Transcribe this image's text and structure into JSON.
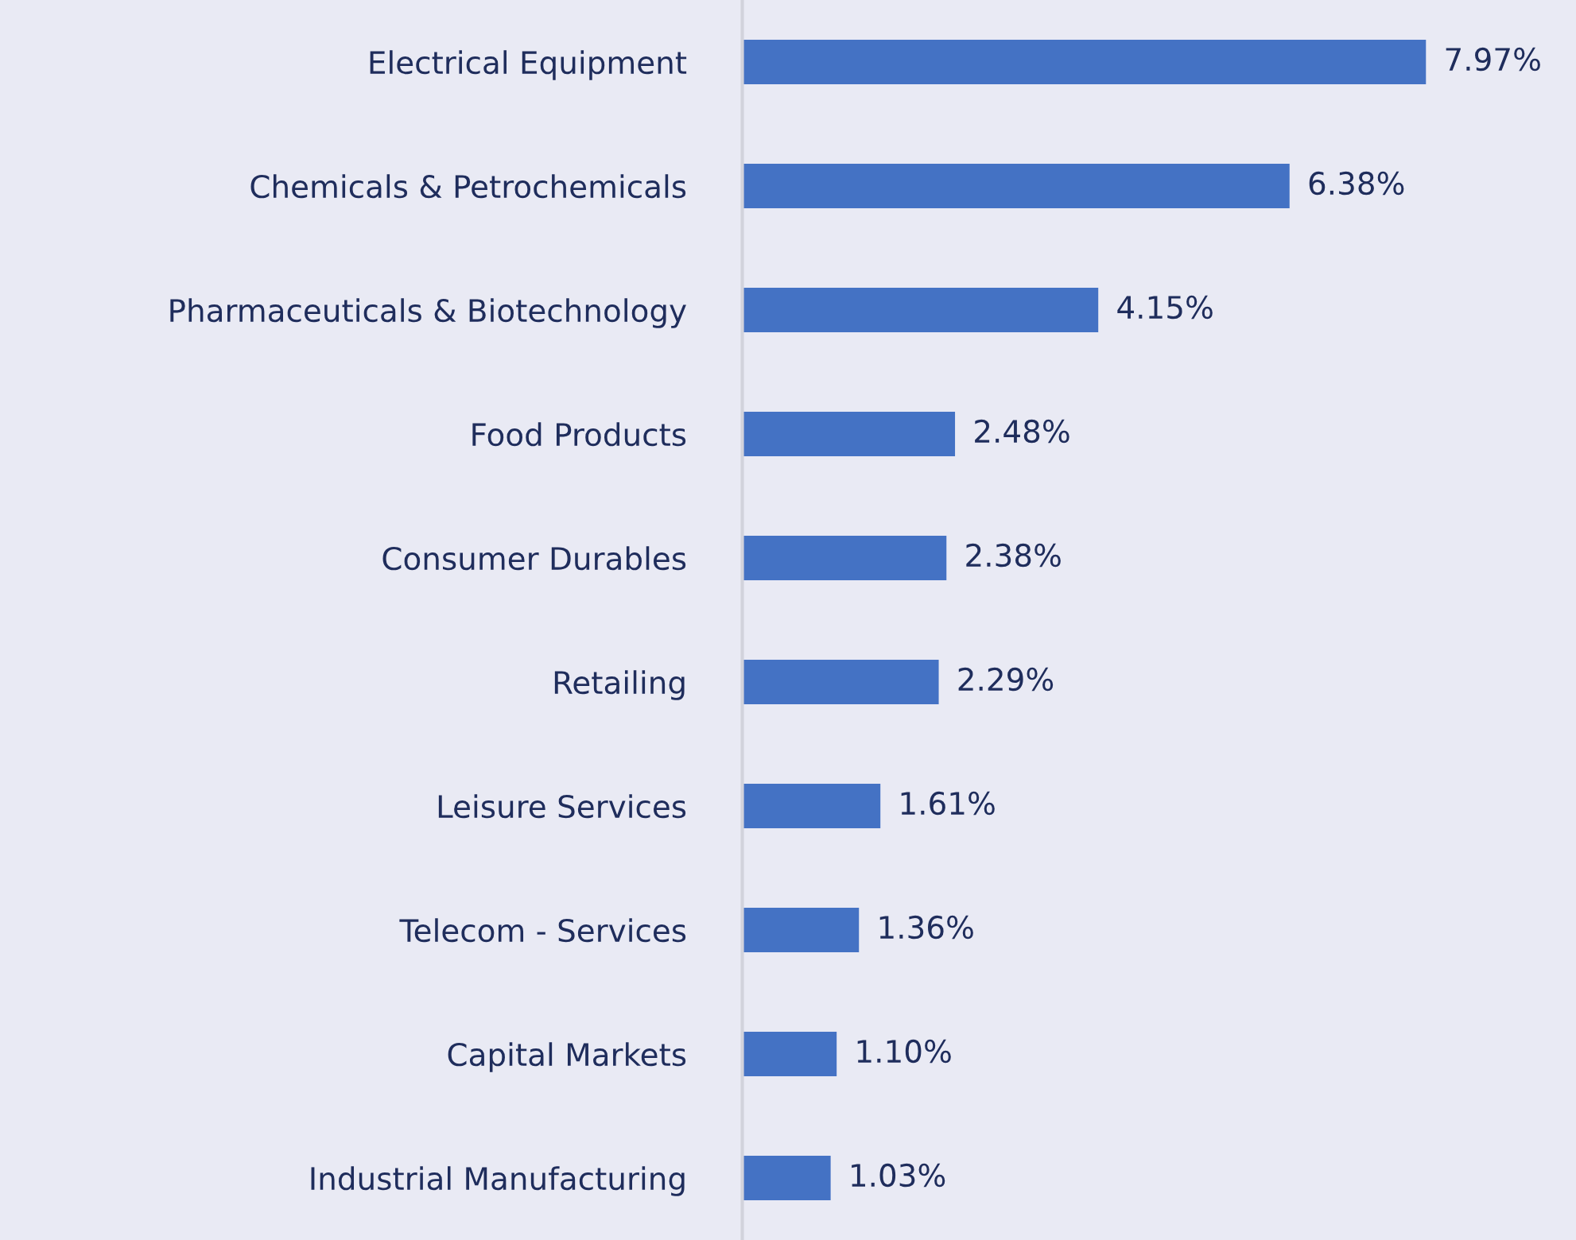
{
  "chart_data": {
    "type": "bar",
    "orientation": "horizontal",
    "categories": [
      "Electrical Equipment",
      "Chemicals & Petrochemicals",
      "Pharmaceuticals & Biotechnology",
      "Food Products",
      "Consumer Durables",
      "Retailing",
      "Leisure Services",
      "Telecom - Services",
      "Capital Markets",
      "Industrial Manufacturing"
    ],
    "values": [
      7.97,
      6.38,
      4.15,
      2.48,
      2.38,
      2.29,
      1.61,
      1.36,
      1.1,
      1.03
    ],
    "value_labels": [
      "7.97%",
      "6.38%",
      "4.15%",
      "2.48%",
      "2.38%",
      "2.29%",
      "1.61%",
      "1.36%",
      "1.10%",
      "1.03%"
    ],
    "color": "#4472c4",
    "grid": false,
    "legend": false,
    "tick_labels": "y"
  }
}
